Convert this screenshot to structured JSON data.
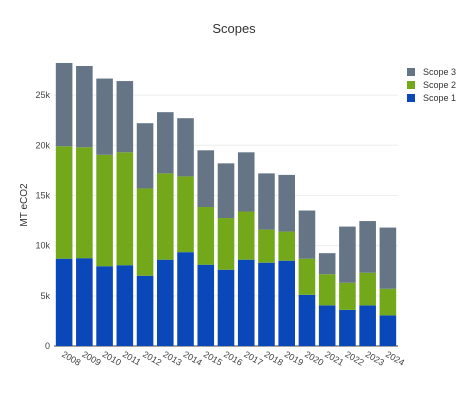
{
  "chart_data": {
    "type": "bar",
    "stacked": true,
    "title": "Scopes",
    "xlabel": "",
    "ylabel": "MT eCO2",
    "ylim": [
      0,
      28000
    ],
    "yticks": [
      0,
      5000,
      10000,
      15000,
      20000,
      25000
    ],
    "ytick_labels": [
      "0",
      "5k",
      "10k",
      "15k",
      "20k",
      "25k"
    ],
    "grid": true,
    "legend_position": "top-right",
    "categories": [
      "2008",
      "2009",
      "2010",
      "2011",
      "2012",
      "2013",
      "2014",
      "2015",
      "2016",
      "2017",
      "2018",
      "2019",
      "2020",
      "2021",
      "2022",
      "2023",
      "2024"
    ],
    "series": [
      {
        "name": "Scope 1",
        "color": "#0a47b8",
        "values": [
          8700,
          8750,
          7950,
          8050,
          7000,
          8600,
          9350,
          8100,
          7600,
          8600,
          8300,
          8500,
          5100,
          4050,
          3600,
          4050,
          3050
        ]
      },
      {
        "name": "Scope 2",
        "color": "#72a81a",
        "values": [
          11200,
          11050,
          11100,
          11250,
          8700,
          8600,
          7550,
          5750,
          5150,
          4800,
          3300,
          2900,
          3600,
          3100,
          2700,
          3250,
          2650
        ]
      },
      {
        "name": "Scope 3",
        "color": "#657586",
        "values": [
          8300,
          8100,
          7600,
          7100,
          6500,
          6100,
          5800,
          5650,
          5450,
          5900,
          5600,
          5650,
          4800,
          2100,
          5600,
          5150,
          6100
        ]
      }
    ],
    "legend_order": [
      "Scope 3",
      "Scope 2",
      "Scope 1"
    ]
  }
}
